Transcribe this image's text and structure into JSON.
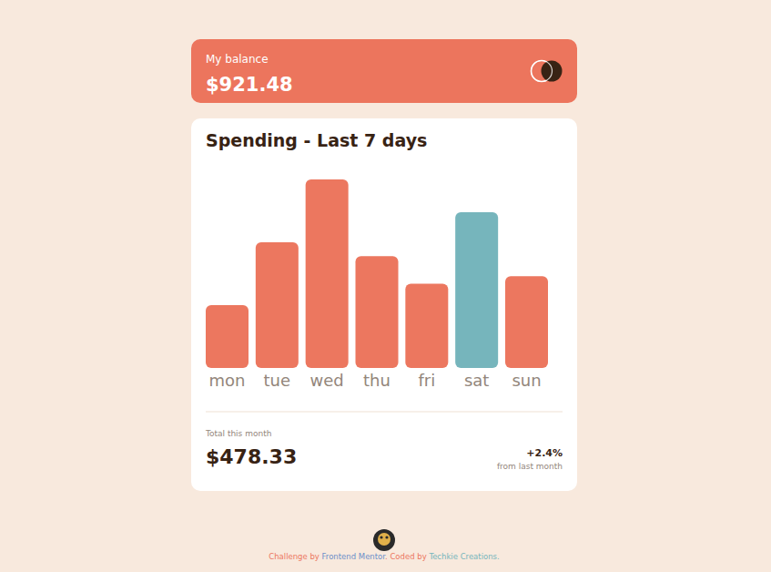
{
  "balance": {
    "label": "My balance",
    "amount": "$921.48"
  },
  "chart_data": {
    "type": "bar",
    "title": "Spending - Last 7 days",
    "categories": [
      "mon",
      "tue",
      "wed",
      "thu",
      "fri",
      "sat",
      "sun"
    ],
    "values": [
      17.45,
      34.91,
      52.36,
      31.07,
      23.39,
      43.28,
      25.48
    ],
    "colors": [
      "#ec775f",
      "#ec775f",
      "#ec775f",
      "#ec775f",
      "#ec775f",
      "#76b5bc",
      "#ec775f"
    ],
    "ylim": [
      0,
      52.36
    ],
    "grid": false,
    "data_labels": false,
    "tick_labels": "x"
  },
  "summary": {
    "label": "Total this month",
    "total": "$478.33",
    "change": "+2.4%",
    "change_label": "from last month"
  },
  "footer": {
    "parts": [
      "Challenge by ",
      "Frontend Mentor",
      ". Coded by ",
      "Techkie Creations."
    ]
  }
}
